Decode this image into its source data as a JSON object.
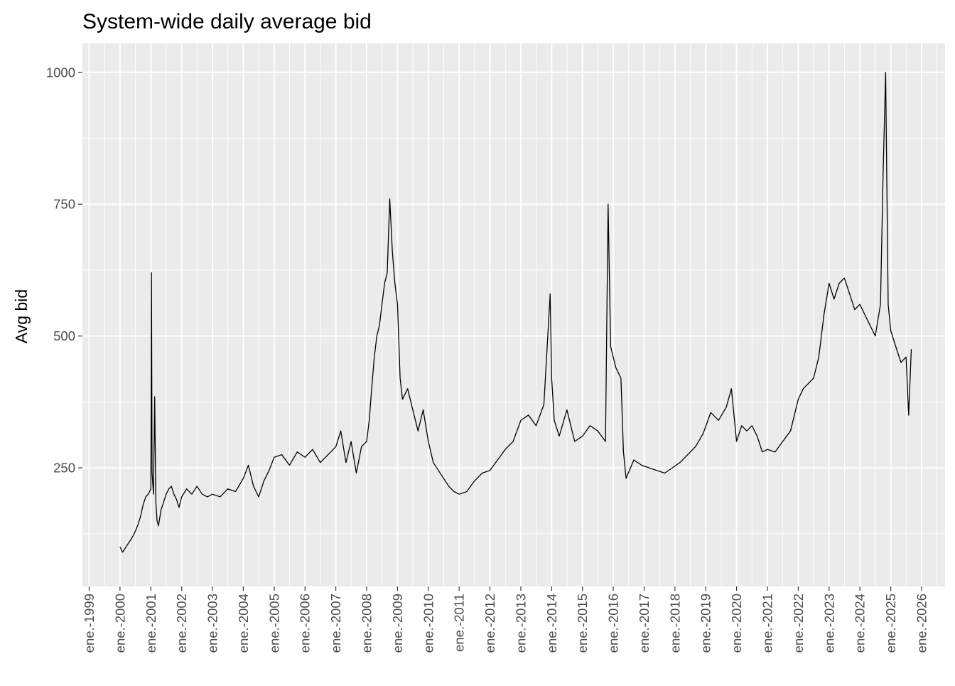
{
  "chart_data": {
    "type": "line",
    "title": "System-wide daily average bid",
    "xlabel": "",
    "ylabel": "Avg bid",
    "x_is_date": true,
    "xlim": [
      "1998-10-13",
      "2026-10-06"
    ],
    "ylim": [
      25,
      1055
    ],
    "x_ticks": [
      "1999-01-01",
      "2000-01-01",
      "2001-01-01",
      "2002-01-01",
      "2003-01-01",
      "2004-01-01",
      "2005-01-01",
      "2006-01-01",
      "2007-01-01",
      "2008-01-01",
      "2009-01-01",
      "2010-01-01",
      "2011-01-01",
      "2012-01-01",
      "2013-01-01",
      "2014-01-01",
      "2015-01-01",
      "2016-01-01",
      "2017-01-01",
      "2018-01-01",
      "2019-01-01",
      "2020-01-01",
      "2021-01-01",
      "2022-01-01",
      "2023-01-01",
      "2024-01-01",
      "2025-01-01",
      "2026-01-01"
    ],
    "x_tick_labels": [
      "ene.-1999",
      "ene.-2000",
      "ene.-2001",
      "ene.-2002",
      "ene.-2003",
      "ene.-2004",
      "ene.-2005",
      "ene.-2006",
      "ene.-2007",
      "ene.-2008",
      "ene.-2009",
      "ene.-2010",
      "ene.-2011",
      "ene.-2012",
      "ene.-2013",
      "ene.-2014",
      "ene.-2015",
      "ene.-2016",
      "ene.-2017",
      "ene.-2018",
      "ene.-2019",
      "ene.-2020",
      "ene.-2021",
      "ene.-2022",
      "ene.-2023",
      "ene.-2024",
      "ene.-2025",
      "ene.-2026"
    ],
    "y_ticks": [
      250,
      500,
      750,
      1000
    ],
    "y_tick_labels": [
      "250",
      "500",
      "750",
      "1000"
    ],
    "grid": true,
    "legend": "none",
    "colors": {
      "line": "#000000",
      "panel": "#ebebeb",
      "grid": "#ffffff",
      "tick_label": "#4d4d4d"
    },
    "series": [
      {
        "values": [
          [
            "2000-01-01",
            100
          ],
          [
            "2000-02-01",
            90
          ],
          [
            "2000-03-01",
            97
          ],
          [
            "2000-04-01",
            105
          ],
          [
            "2000-05-01",
            112
          ],
          [
            "2000-06-01",
            120
          ],
          [
            "2000-07-01",
            130
          ],
          [
            "2000-08-01",
            142
          ],
          [
            "2000-09-01",
            158
          ],
          [
            "2000-10-01",
            180
          ],
          [
            "2000-11-01",
            195
          ],
          [
            "2000-12-01",
            200
          ],
          [
            "2001-01-01",
            210
          ],
          [
            "2001-01-08",
            620
          ],
          [
            "2001-01-15",
            240
          ],
          [
            "2001-02-01",
            200
          ],
          [
            "2001-02-15",
            385
          ],
          [
            "2001-03-01",
            185
          ],
          [
            "2001-03-15",
            150
          ],
          [
            "2001-04-01",
            140
          ],
          [
            "2001-05-01",
            170
          ],
          [
            "2001-06-01",
            185
          ],
          [
            "2001-07-01",
            200
          ],
          [
            "2001-08-01",
            210
          ],
          [
            "2001-09-01",
            215
          ],
          [
            "2001-10-01",
            200
          ],
          [
            "2001-11-01",
            190
          ],
          [
            "2001-12-01",
            175
          ],
          [
            "2002-01-01",
            195
          ],
          [
            "2002-03-01",
            210
          ],
          [
            "2002-05-01",
            200
          ],
          [
            "2002-07-01",
            215
          ],
          [
            "2002-09-01",
            200
          ],
          [
            "2002-11-01",
            195
          ],
          [
            "2003-01-01",
            200
          ],
          [
            "2003-04-01",
            195
          ],
          [
            "2003-07-01",
            210
          ],
          [
            "2003-10-01",
            205
          ],
          [
            "2004-01-01",
            230
          ],
          [
            "2004-03-01",
            255
          ],
          [
            "2004-05-01",
            215
          ],
          [
            "2004-07-01",
            195
          ],
          [
            "2004-09-01",
            225
          ],
          [
            "2004-11-01",
            245
          ],
          [
            "2005-01-01",
            270
          ],
          [
            "2005-04-01",
            275
          ],
          [
            "2005-07-01",
            255
          ],
          [
            "2005-10-01",
            280
          ],
          [
            "2006-01-01",
            270
          ],
          [
            "2006-04-01",
            285
          ],
          [
            "2006-07-01",
            260
          ],
          [
            "2006-10-01",
            275
          ],
          [
            "2007-01-01",
            290
          ],
          [
            "2007-03-01",
            320
          ],
          [
            "2007-05-01",
            260
          ],
          [
            "2007-07-01",
            300
          ],
          [
            "2007-09-01",
            240
          ],
          [
            "2007-11-01",
            290
          ],
          [
            "2008-01-01",
            300
          ],
          [
            "2008-02-01",
            340
          ],
          [
            "2008-03-01",
            400
          ],
          [
            "2008-04-01",
            460
          ],
          [
            "2008-05-01",
            500
          ],
          [
            "2008-06-01",
            520
          ],
          [
            "2008-07-01",
            560
          ],
          [
            "2008-08-01",
            600
          ],
          [
            "2008-09-01",
            620
          ],
          [
            "2008-10-01",
            760
          ],
          [
            "2008-11-01",
            660
          ],
          [
            "2008-12-01",
            600
          ],
          [
            "2009-01-01",
            560
          ],
          [
            "2009-02-01",
            420
          ],
          [
            "2009-03-01",
            380
          ],
          [
            "2009-05-01",
            400
          ],
          [
            "2009-07-01",
            360
          ],
          [
            "2009-09-01",
            320
          ],
          [
            "2009-11-01",
            360
          ],
          [
            "2010-01-01",
            300
          ],
          [
            "2010-03-01",
            260
          ],
          [
            "2010-05-01",
            245
          ],
          [
            "2010-07-01",
            230
          ],
          [
            "2010-09-01",
            215
          ],
          [
            "2010-11-01",
            205
          ],
          [
            "2011-01-01",
            200
          ],
          [
            "2011-04-01",
            205
          ],
          [
            "2011-07-01",
            225
          ],
          [
            "2011-10-01",
            240
          ],
          [
            "2012-01-01",
            245
          ],
          [
            "2012-04-01",
            265
          ],
          [
            "2012-07-01",
            285
          ],
          [
            "2012-10-01",
            300
          ],
          [
            "2013-01-01",
            340
          ],
          [
            "2013-04-01",
            350
          ],
          [
            "2013-07-01",
            330
          ],
          [
            "2013-10-01",
            370
          ],
          [
            "2013-12-15",
            580
          ],
          [
            "2014-01-01",
            420
          ],
          [
            "2014-02-01",
            340
          ],
          [
            "2014-04-01",
            310
          ],
          [
            "2014-07-01",
            360
          ],
          [
            "2014-10-01",
            300
          ],
          [
            "2015-01-01",
            310
          ],
          [
            "2015-04-01",
            330
          ],
          [
            "2015-07-01",
            320
          ],
          [
            "2015-10-01",
            300
          ],
          [
            "2015-11-01",
            750
          ],
          [
            "2015-12-01",
            480
          ],
          [
            "2016-02-01",
            440
          ],
          [
            "2016-04-01",
            420
          ],
          [
            "2016-05-01",
            280
          ],
          [
            "2016-06-01",
            230
          ],
          [
            "2016-09-01",
            265
          ],
          [
            "2016-12-01",
            255
          ],
          [
            "2017-03-01",
            250
          ],
          [
            "2017-06-01",
            245
          ],
          [
            "2017-09-01",
            240
          ],
          [
            "2017-12-01",
            250
          ],
          [
            "2018-03-01",
            260
          ],
          [
            "2018-06-01",
            275
          ],
          [
            "2018-09-01",
            290
          ],
          [
            "2018-12-01",
            315
          ],
          [
            "2019-03-01",
            355
          ],
          [
            "2019-06-01",
            340
          ],
          [
            "2019-09-01",
            365
          ],
          [
            "2019-11-01",
            400
          ],
          [
            "2020-01-01",
            300
          ],
          [
            "2020-03-01",
            330
          ],
          [
            "2020-05-01",
            320
          ],
          [
            "2020-07-01",
            330
          ],
          [
            "2020-09-01",
            310
          ],
          [
            "2020-11-01",
            280
          ],
          [
            "2021-01-01",
            285
          ],
          [
            "2021-04-01",
            280
          ],
          [
            "2021-07-01",
            300
          ],
          [
            "2021-10-01",
            320
          ],
          [
            "2022-01-01",
            380
          ],
          [
            "2022-03-01",
            400
          ],
          [
            "2022-05-01",
            410
          ],
          [
            "2022-07-01",
            420
          ],
          [
            "2022-09-01",
            460
          ],
          [
            "2022-11-01",
            540
          ],
          [
            "2023-01-01",
            600
          ],
          [
            "2023-03-01",
            570
          ],
          [
            "2023-05-01",
            600
          ],
          [
            "2023-07-01",
            610
          ],
          [
            "2023-09-01",
            580
          ],
          [
            "2023-11-01",
            550
          ],
          [
            "2024-01-01",
            560
          ],
          [
            "2024-03-01",
            540
          ],
          [
            "2024-05-01",
            520
          ],
          [
            "2024-07-01",
            500
          ],
          [
            "2024-09-01",
            560
          ],
          [
            "2024-10-01",
            800
          ],
          [
            "2024-11-01",
            1000
          ],
          [
            "2024-12-01",
            560
          ],
          [
            "2025-01-01",
            510
          ],
          [
            "2025-03-01",
            480
          ],
          [
            "2025-05-01",
            450
          ],
          [
            "2025-07-01",
            460
          ],
          [
            "2025-08-01",
            350
          ],
          [
            "2025-09-01",
            475
          ]
        ]
      }
    ]
  }
}
